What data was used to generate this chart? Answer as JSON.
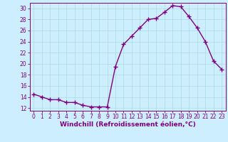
{
  "x": [
    0,
    1,
    2,
    3,
    4,
    5,
    6,
    7,
    8,
    9,
    10,
    11,
    12,
    13,
    14,
    15,
    16,
    17,
    18,
    19,
    20,
    21,
    22,
    23
  ],
  "y": [
    14.5,
    14.0,
    13.5,
    13.5,
    13.0,
    13.0,
    12.5,
    12.2,
    12.2,
    12.2,
    19.5,
    23.5,
    25.0,
    26.5,
    28.0,
    28.2,
    29.3,
    30.5,
    30.3,
    28.5,
    26.5,
    24.0,
    20.5,
    19.0
  ],
  "line_color": "#800080",
  "marker": "+",
  "markersize": 4,
  "markeredgewidth": 1.0,
  "bg_color": "#cceeff",
  "grid_color": "#aadddd",
  "xlabel": "Windchill (Refroidissement éolien,°C)",
  "xlim": [
    -0.5,
    23.5
  ],
  "ylim": [
    11.5,
    31.0
  ],
  "yticks": [
    12,
    14,
    16,
    18,
    20,
    22,
    24,
    26,
    28,
    30
  ],
  "xticks": [
    0,
    1,
    2,
    3,
    4,
    5,
    6,
    7,
    8,
    9,
    10,
    11,
    12,
    13,
    14,
    15,
    16,
    17,
    18,
    19,
    20,
    21,
    22,
    23
  ],
  "tick_color": "#800080",
  "label_color": "#800080",
  "axis_color": "#800080",
  "linewidth": 1.0,
  "tick_fontsize": 5.5,
  "label_fontsize": 6.5
}
